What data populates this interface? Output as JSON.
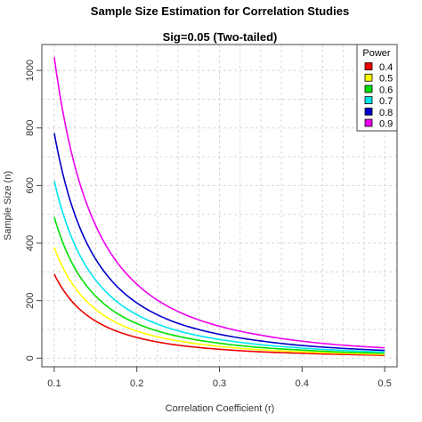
{
  "chart_data": {
    "type": "line",
    "title": "Sample Size Estimation for Correlation Studies",
    "subtitle": "Sig=0.05 (Two-tailed)",
    "xlabel": "Correlation Coefficient (r)",
    "ylabel": "Sample Size (n)",
    "xlim": [
      0.085,
      0.515
    ],
    "ylim": [
      -30,
      1090
    ],
    "xticks": [
      "0.1",
      "0.2",
      "0.3",
      "0.4",
      "0.5"
    ],
    "yticks": [
      "0",
      "200",
      "400",
      "600",
      "800",
      "1000"
    ],
    "grid": true,
    "legend": {
      "title": "Power",
      "position": "top-right"
    },
    "x": [
      0.1,
      0.15,
      0.2,
      0.25,
      0.3,
      0.35,
      0.4,
      0.45,
      0.5
    ],
    "series": [
      {
        "name": "0.4",
        "color": "#ee0000",
        "values": [
          292,
          129,
          72,
          45,
          31,
          22,
          17,
          13,
          10
        ]
      },
      {
        "name": "0.5",
        "color": "#ffff00",
        "values": [
          385,
          170,
          94,
          60,
          41,
          29,
          22,
          17,
          13
        ]
      },
      {
        "name": "0.6",
        "color": "#00e000",
        "values": [
          490,
          216,
          120,
          76,
          52,
          37,
          28,
          21,
          17
        ]
      },
      {
        "name": "0.7",
        "color": "#00e5ee",
        "values": [
          616,
          272,
          151,
          95,
          65,
          47,
          35,
          27,
          21
        ]
      },
      {
        "name": "0.8",
        "color": "#0000cd",
        "values": [
          782,
          345,
          192,
          121,
          83,
          60,
          44,
          34,
          27
        ]
      },
      {
        "name": "0.9",
        "color": "#ee00ee",
        "values": [
          1046,
          462,
          257,
          162,
          111,
          80,
          59,
          45,
          36
        ]
      }
    ]
  }
}
